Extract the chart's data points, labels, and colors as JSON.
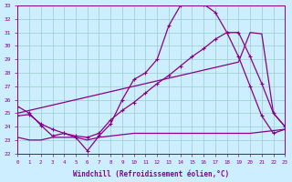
{
  "xlabel": "Windchill (Refroidissement éolien,°C)",
  "xlim": [
    0,
    23
  ],
  "ylim": [
    22,
    33
  ],
  "yticks": [
    22,
    23,
    24,
    25,
    26,
    27,
    28,
    29,
    30,
    31,
    32,
    33
  ],
  "xticks": [
    0,
    1,
    2,
    3,
    4,
    5,
    6,
    7,
    8,
    9,
    10,
    11,
    12,
    13,
    14,
    15,
    16,
    17,
    18,
    19,
    20,
    21,
    22,
    23
  ],
  "bg_color": "#cceeff",
  "grid_color": "#99cccc",
  "line_color": "#880088",
  "line1_x": [
    0,
    1,
    2,
    3,
    4,
    5,
    6,
    7,
    8,
    9,
    10,
    11,
    12,
    13,
    14,
    15,
    16,
    17,
    18,
    19,
    20,
    21,
    22,
    23
  ],
  "line1_y": [
    25.5,
    25.0,
    24.1,
    23.3,
    23.5,
    23.2,
    22.2,
    23.3,
    24.2,
    26.0,
    27.5,
    28.0,
    29.0,
    31.5,
    33.0,
    33.2,
    33.1,
    32.5,
    31.0,
    29.2,
    27.0,
    24.8,
    23.5,
    23.8
  ],
  "line2_x": [
    0,
    1,
    2,
    3,
    4,
    5,
    6,
    7,
    8,
    9,
    10,
    11,
    12,
    13,
    14,
    15,
    16,
    17,
    18,
    19,
    20,
    21,
    22,
    23
  ],
  "line2_y": [
    24.8,
    24.9,
    24.2,
    23.8,
    23.5,
    23.3,
    23.2,
    23.5,
    24.5,
    25.2,
    25.8,
    26.5,
    27.2,
    27.8,
    28.5,
    29.2,
    29.8,
    30.5,
    31.0,
    31.0,
    29.2,
    27.2,
    25.0,
    24.0
  ],
  "line3_x": [
    0,
    19,
    20,
    21,
    22,
    23
  ],
  "line3_y": [
    25.0,
    28.8,
    31.0,
    30.9,
    25.0,
    24.0
  ],
  "line4_x": [
    0,
    1,
    2,
    3,
    4,
    5,
    6,
    7,
    8,
    9,
    10,
    11,
    12,
    13,
    14,
    15,
    16,
    17,
    18,
    19,
    20,
    21,
    22,
    23
  ],
  "line4_y": [
    23.2,
    23.0,
    23.0,
    23.2,
    23.2,
    23.2,
    23.0,
    23.2,
    23.3,
    23.4,
    23.5,
    23.5,
    23.5,
    23.5,
    23.5,
    23.5,
    23.5,
    23.5,
    23.5,
    23.5,
    23.5,
    23.6,
    23.7,
    23.8
  ]
}
